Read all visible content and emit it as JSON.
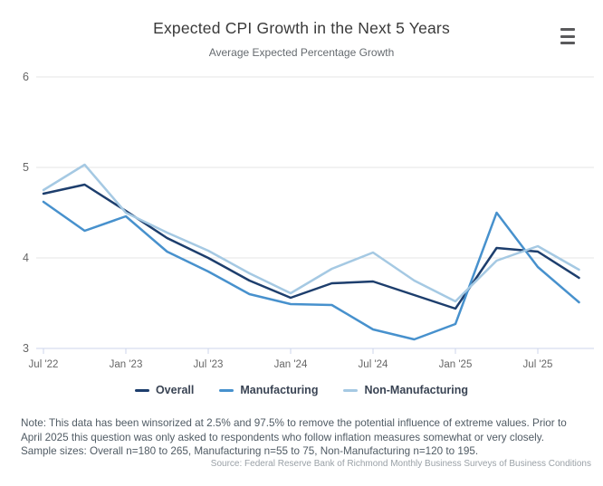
{
  "header": {
    "title": "Expected CPI Growth in the Next 5 Years",
    "subtitle": "Average Expected Percentage Growth"
  },
  "menu": {
    "icon": "hamburger-menu-icon"
  },
  "chart_data": {
    "type": "line",
    "categories": [
      "Jul '22",
      "Oct '22",
      "Jan '23",
      "Apr '23",
      "Jul '23",
      "Oct '23",
      "Jan '24",
      "Apr '24",
      "Jul '24",
      "Oct '24",
      "Jan '25",
      "Apr '25",
      "Jul '25",
      "Oct '25"
    ],
    "series": [
      {
        "name": "Overall",
        "color": "#1d3e6d",
        "values": [
          4.71,
          4.81,
          4.52,
          4.22,
          4.0,
          3.75,
          3.56,
          3.72,
          3.74,
          3.59,
          3.44,
          4.11,
          4.07,
          3.78
        ]
      },
      {
        "name": "Manufacturing",
        "color": "#4791cd",
        "values": [
          4.62,
          4.3,
          4.46,
          4.07,
          3.85,
          3.6,
          3.49,
          3.48,
          3.21,
          3.1,
          3.27,
          4.5,
          3.9,
          3.51
        ]
      },
      {
        "name": "Non-Manufacturing",
        "color": "#a5c9e3",
        "values": [
          4.75,
          5.03,
          4.5,
          4.28,
          4.08,
          3.83,
          3.61,
          3.88,
          4.06,
          3.75,
          3.52,
          3.97,
          4.13,
          3.87
        ]
      }
    ],
    "x_tick_labels": [
      "Jul '22",
      "Jan '23",
      "Jul '23",
      "Jan '24",
      "Jul '24",
      "Jan '25",
      "Jul '25"
    ],
    "y_ticks": [
      3,
      4,
      5,
      6
    ],
    "ylim": [
      3,
      6
    ],
    "grid": true,
    "legend_position": "bottom",
    "colors": {
      "gridline": "#e6e6e6",
      "axis_line": "#ccd6eb",
      "axis_label": "#666666"
    }
  },
  "footer": {
    "note": "Note: This data has been winsorized at 2.5% and 97.5% to remove the potential influence of extreme values. Prior to April 2025 this question was only asked to respondents who follow inflation measures somewhat or very closely. Sample sizes: Overall n=180 to 265, Manufacturing n=55 to 75, Non-Manufacturing n=120 to 195.",
    "source": "Source: Federal Reserve Bank of Richmond Monthly Business Surveys of Business Conditions"
  }
}
